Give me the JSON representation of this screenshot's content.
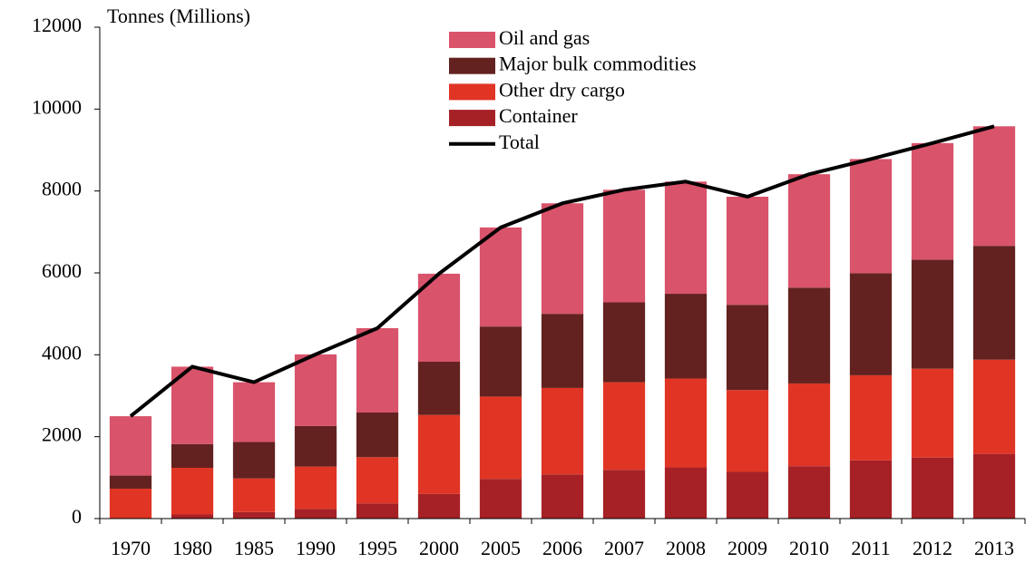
{
  "chart_data": {
    "type": "bar",
    "stacked": true,
    "y_label": "Tonnes (Millions)",
    "categories": [
      "1970",
      "1980",
      "1985",
      "1990",
      "1995",
      "2000",
      "2005",
      "2006",
      "2007",
      "2008",
      "2009",
      "2010",
      "2011",
      "2012",
      "2013"
    ],
    "series": [
      {
        "name": "Container",
        "color": "#a62126",
        "values": [
          0,
          100,
          160,
          235,
          370,
          600,
          970,
          1080,
          1190,
          1250,
          1140,
          1280,
          1420,
          1490,
          1580
        ]
      },
      {
        "name": "Other dry cargo",
        "color": "#e03525",
        "values": [
          730,
          1140,
          820,
          1035,
          1130,
          1930,
          2010,
          2110,
          2140,
          2170,
          2000,
          2020,
          2080,
          2170,
          2300
        ]
      },
      {
        "name": "Major bulk commodities",
        "color": "#63221f",
        "values": [
          320,
          580,
          890,
          990,
          1090,
          1300,
          1710,
          1810,
          1950,
          2070,
          2080,
          2340,
          2490,
          2660,
          2780
        ]
      },
      {
        "name": "Oil and gas",
        "color": "#d9536b",
        "values": [
          1450,
          1890,
          1460,
          1750,
          2060,
          2150,
          2420,
          2700,
          2750,
          2740,
          2640,
          2770,
          2790,
          2850,
          2920
        ]
      },
      {
        "name": "Total",
        "type": "line",
        "color": "#000000",
        "values": [
          2500,
          3710,
          3330,
          4010,
          4650,
          5980,
          7110,
          7700,
          8030,
          8230,
          7860,
          8410,
          8780,
          9170,
          9580
        ]
      }
    ],
    "ylim": [
      0,
      12000
    ],
    "yticks": [
      0,
      2000,
      4000,
      6000,
      8000,
      10000,
      12000
    ],
    "grid": false,
    "legend": "top"
  }
}
